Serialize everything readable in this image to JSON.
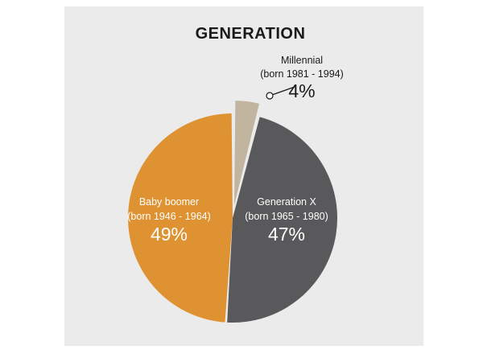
{
  "chart_data": {
    "type": "pie",
    "title": "GENERATION",
    "slices": [
      {
        "name": "Millennial",
        "range": "(born 1981 - 1994)",
        "pct_label": "4%",
        "value": 4,
        "color": "#c1b59f"
      },
      {
        "name": "Generation X",
        "range": "(born 1965 - 1980)",
        "pct_label": "47%",
        "value": 47,
        "color": "#59595b"
      },
      {
        "name": "Baby boomer",
        "range": "(born 1946 - 1964)",
        "pct_label": "49%",
        "value": 49,
        "color": "#df9232"
      }
    ],
    "start_angle_deg": 0,
    "direction": "clockwise",
    "exploded_slice": "Millennial",
    "callout_slice": "Millennial",
    "label_color_on_dark": "#ffffff",
    "label_color_outside": "#1a1a1a"
  }
}
